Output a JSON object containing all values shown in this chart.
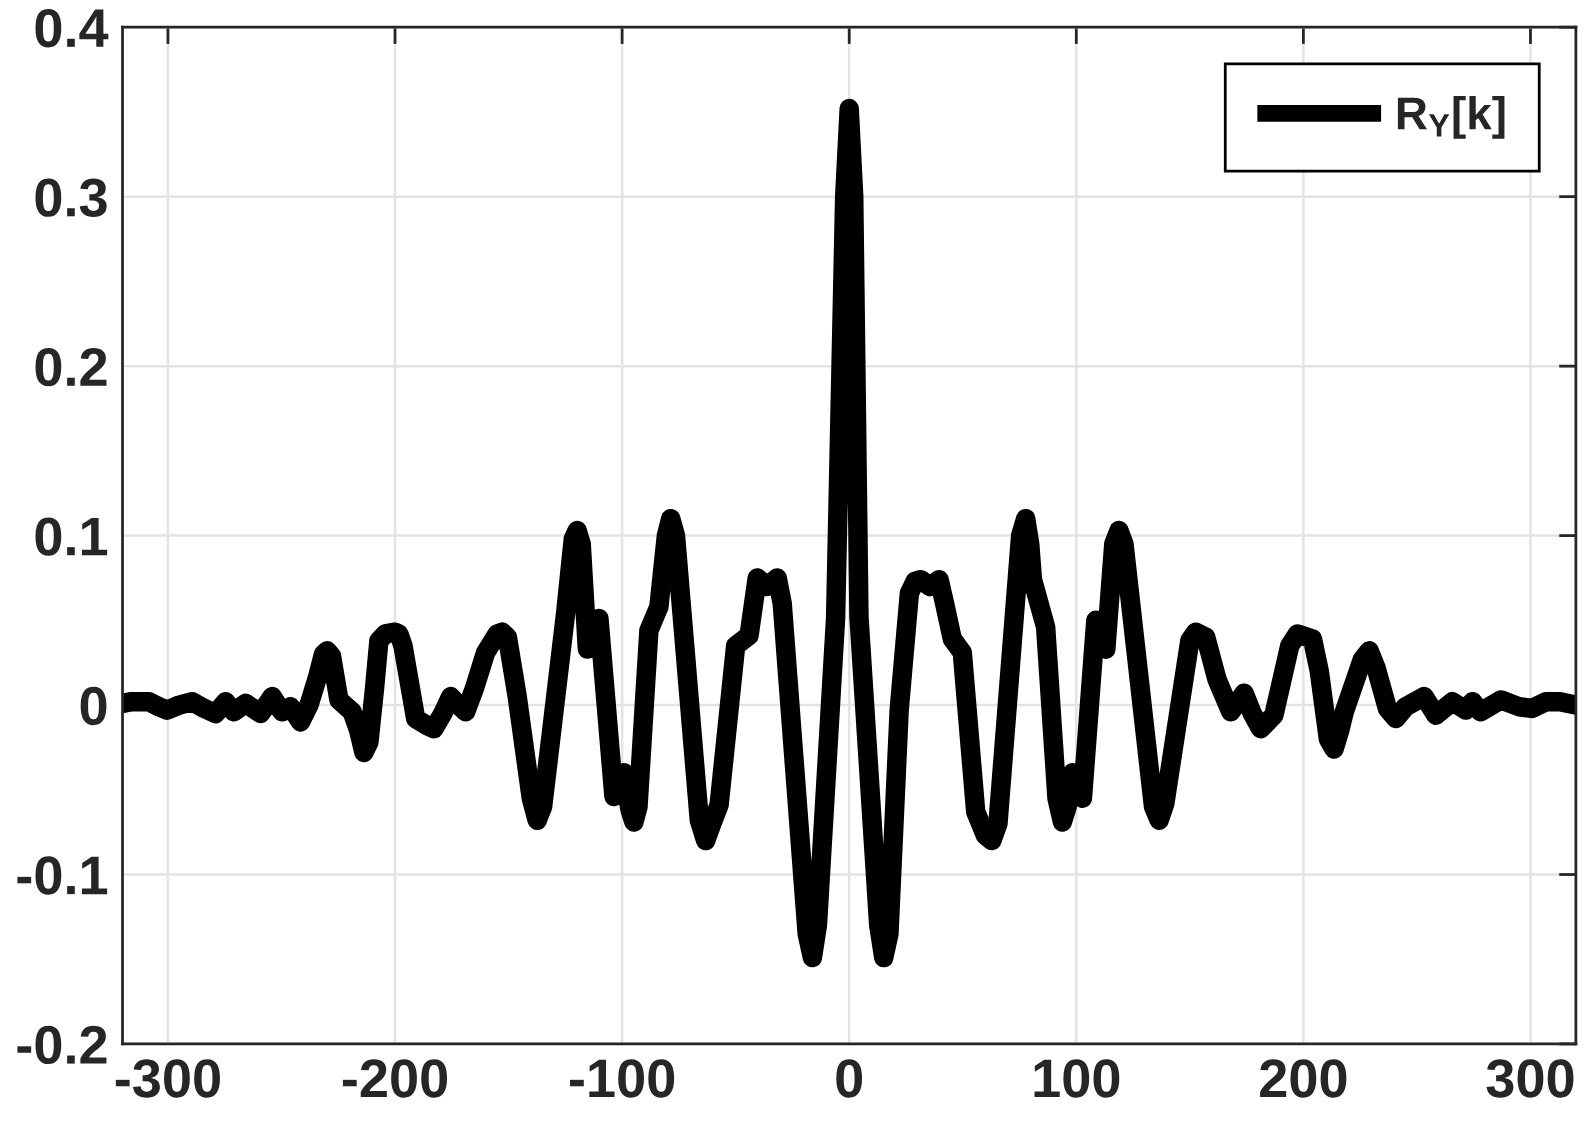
{
  "chart_data": {
    "type": "line",
    "xlim": [
      -320,
      320
    ],
    "ylim": [
      -0.2,
      0.4
    ],
    "xticks": [
      -300,
      -200,
      -100,
      0,
      100,
      200,
      300
    ],
    "yticks": [
      -0.2,
      -0.1,
      0,
      0.1,
      0.2,
      0.3,
      0.4
    ],
    "grid": true,
    "legend": "top right",
    "line_style": "solid",
    "series": [
      {
        "name": "R$_{Y}$[k]",
        "color": "#000000",
        "x": [
          -320,
          -316,
          -312,
          -308.4,
          -304,
          -300.3,
          -295,
          -289.3,
          -284,
          -279,
          -274.6,
          -271,
          -265.8,
          -259.2,
          -254.1,
          -249.7,
          -246,
          -241.6,
          -237.9,
          -234,
          -231.5,
          -229.9,
          -228,
          -224.7,
          -218.9,
          -216,
          -213.7,
          -211.5,
          -209,
          -207.1,
          -204.2,
          -200,
          -198.3,
          -196.5,
          -190.9,
          -186,
          -182.9,
          -179,
          -175.5,
          -172,
          -168.9,
          -165,
          -160.1,
          -155,
          -152.8,
          -150.5,
          -146.2,
          -140,
          -137.4,
          -135,
          -124.9,
          -121.5,
          -119.8,
          -118,
          -115.3,
          -110.2,
          -103.6,
          -99.2,
          -96.5,
          -94.8,
          -93,
          -88.2,
          -83.8,
          -80.5,
          -78.6,
          -76.5,
          -66,
          -63.2,
          -60.5,
          -57.3,
          -50,
          -44.1,
          -40.5,
          -36.1,
          -31.7,
          -29.5,
          -18.5,
          -16.2,
          -14,
          -6,
          -2,
          0,
          2,
          4.3,
          13,
          15.2,
          17.5,
          22,
          26.5,
          29,
          31.5,
          35.5,
          39.6,
          42,
          45.4,
          49.8,
          55.7,
          60,
          62.8,
          65.5,
          75.5,
          77.7,
          79.5,
          80.7,
          86.5,
          91.5,
          93.9,
          96,
          98.3,
          100.5,
          102.7,
          108.6,
          113,
          116.5,
          118.8,
          121,
          134,
          136.5,
          139,
          150,
          152.6,
          157,
          162,
          168,
          173.9,
          177.5,
          181.2,
          187,
          194,
          197.4,
          204,
          207,
          211,
          213.5,
          216,
          218,
          226,
          229,
          232,
          237,
          240.7,
          245,
          253.2,
          258.3,
          265.6,
          271.5,
          274.5,
          278,
          287,
          295,
          300.6,
          306.8,
          313,
          320
        ],
        "values": [
          0.001,
          0.002,
          0.002,
          0.002,
          -0.001,
          -0.003,
          0,
          0.002,
          -0.002,
          -0.005,
          0.002,
          -0.004,
          0.001,
          -0.005,
          0.005,
          -0.004,
          -0.001,
          -0.01,
          0,
          0.017,
          0.03,
          0.032,
          0.029,
          0.003,
          -0.004,
          -0.015,
          -0.028,
          -0.022,
          0.01,
          0.038,
          0.042,
          0.043,
          0.042,
          0.035,
          -0.008,
          -0.012,
          -0.014,
          -0.005,
          0.005,
          0,
          -0.004,
          0.01,
          0.031,
          0.042,
          0.043,
          0.04,
          0.005,
          -0.055,
          -0.068,
          -0.06,
          0.054,
          0.098,
          0.103,
          0.095,
          0.033,
          0.051,
          -0.054,
          -0.04,
          -0.062,
          -0.069,
          -0.06,
          0.044,
          0.058,
          0.1,
          0.11,
          0.1,
          -0.068,
          -0.08,
          -0.07,
          -0.059,
          0.035,
          0.041,
          0.075,
          0.07,
          0.075,
          0.06,
          -0.135,
          -0.149,
          -0.13,
          0.051,
          0.3,
          0.352,
          0.3,
          0.052,
          -0.13,
          -0.149,
          -0.135,
          -0.003,
          0.066,
          0.073,
          0.074,
          0.07,
          0.074,
          0.06,
          0.039,
          0.031,
          -0.063,
          -0.077,
          -0.08,
          -0.07,
          0.1,
          0.11,
          0.095,
          0.074,
          0.046,
          -0.055,
          -0.069,
          -0.06,
          -0.04,
          -0.05,
          -0.055,
          0.05,
          0.033,
          0.095,
          0.103,
          0.095,
          -0.06,
          -0.068,
          -0.058,
          0.038,
          0.043,
          0.04,
          0.015,
          -0.004,
          0.007,
          -0.005,
          -0.014,
          -0.006,
          0.035,
          0.042,
          0.039,
          0.02,
          -0.02,
          -0.026,
          -0.015,
          -0.004,
          0.027,
          0.032,
          0.022,
          -0.002,
          -0.008,
          -0.001,
          0.005,
          -0.006,
          0.002,
          -0.003,
          0.002,
          -0.004,
          0.003,
          -0.001,
          -0.002,
          0.002,
          0.002,
          0
        ]
      }
    ]
  }
}
